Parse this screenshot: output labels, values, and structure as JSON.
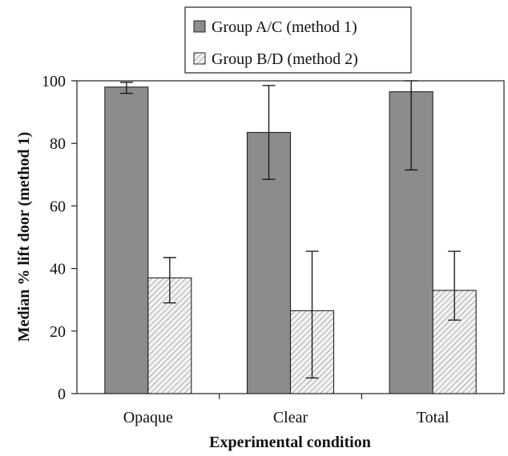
{
  "chart_data": {
    "type": "bar",
    "title": "",
    "xlabel": "Experimental condition",
    "ylabel": "Median % lift door (method 1)",
    "ylim": [
      0,
      100
    ],
    "yticks": [
      0,
      20,
      40,
      60,
      80,
      100
    ],
    "grid": false,
    "legend_position": "top",
    "categories": [
      "Opaque",
      "Clear",
      "Total"
    ],
    "series": [
      {
        "name": "Group A/C (method 1)",
        "fill": "solid",
        "color": "#8c8c8c",
        "values": [
          98,
          83.5,
          96.5
        ],
        "error_low": [
          96,
          68.5,
          71.5
        ],
        "error_high": [
          99.5,
          98.5,
          100
        ]
      },
      {
        "name": "Group B/D (method 2)",
        "fill": "hatched",
        "color": "#e4e4e4",
        "values": [
          37,
          26.5,
          33
        ],
        "error_low": [
          29,
          5,
          23.5
        ],
        "error_high": [
          43.5,
          45.5,
          45.5
        ]
      }
    ]
  }
}
